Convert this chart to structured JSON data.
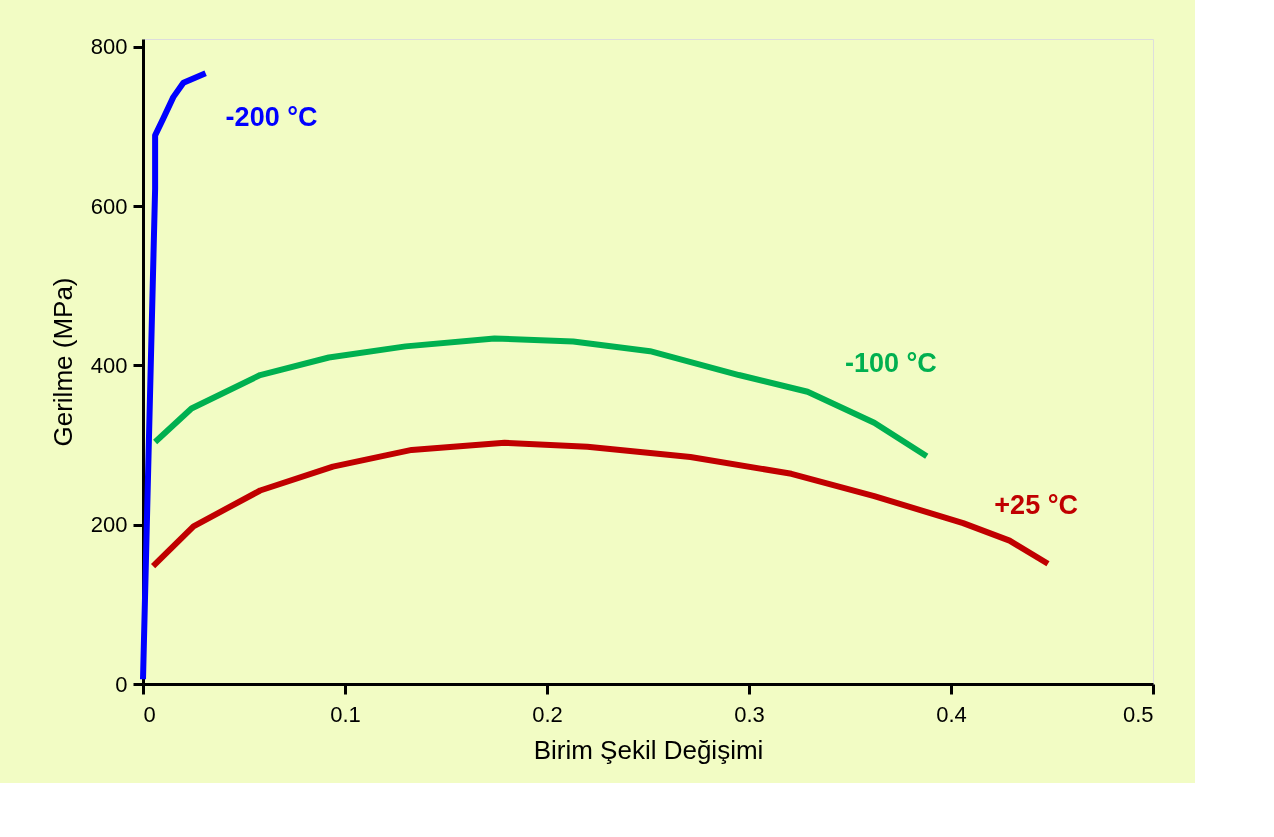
{
  "chart_data": {
    "type": "line",
    "xlabel": "Birim Şekil Değişimi",
    "ylabel": "Gerilme (MPa)",
    "xlim": [
      0,
      0.5
    ],
    "xticks": [
      0,
      0.1,
      0.2,
      0.3,
      0.4,
      0.5
    ],
    "ylim": [
      0,
      810
    ],
    "yticks": [
      0,
      200,
      400,
      600,
      800
    ],
    "grid": false,
    "legend": false,
    "marker": "none",
    "line_style": "solid",
    "series": [
      {
        "name": "-200 °C",
        "color": "#0000ff",
        "x": [
          0,
          0.006,
          0.006,
          0.01,
          0.015,
          0.02,
          0.031
        ],
        "values": [
          6,
          622,
          689,
          710,
          737,
          755,
          767
        ]
      },
      {
        "name": "-100 °C",
        "color": "#00b050",
        "x": [
          0.006,
          0.024,
          0.058,
          0.092,
          0.13,
          0.174,
          0.213,
          0.251,
          0.295,
          0.329,
          0.362,
          0.388
        ],
        "values": [
          304,
          346,
          388,
          410,
          424,
          434,
          430,
          418,
          388,
          367,
          328,
          286
        ]
      },
      {
        "name": "+25 °C",
        "color": "#c00000",
        "x": [
          0.005,
          0.025,
          0.058,
          0.094,
          0.133,
          0.179,
          0.22,
          0.271,
          0.321,
          0.362,
          0.406,
          0.429,
          0.448
        ],
        "values": [
          148,
          198,
          243,
          273,
          294,
          303,
          298,
          285,
          264,
          236,
          202,
          180,
          151
        ]
      }
    ]
  }
}
